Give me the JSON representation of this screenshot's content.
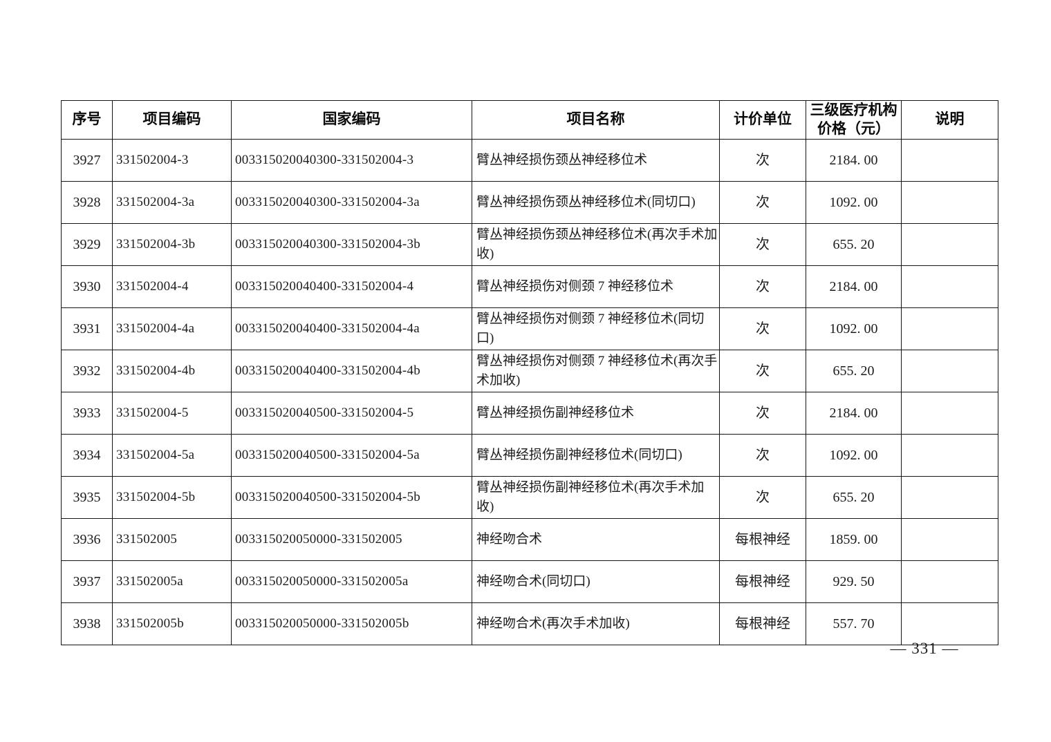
{
  "table": {
    "headers": {
      "seq": "序号",
      "item_code": "项目编码",
      "national_code": "国家编码",
      "item_name": "项目名称",
      "unit": "计价单位",
      "price_line1": "三级医疗机构",
      "price_line2": "价格（元）",
      "note": "说明"
    },
    "column_keys": [
      "seq",
      "item_code",
      "national_code",
      "item_name",
      "unit",
      "price",
      "note"
    ],
    "rows": [
      {
        "seq": "3927",
        "item_code": "331502004-3",
        "national_code": "003315020040300-331502004-3",
        "item_name": "臂丛神经损伤颈丛神经移位术",
        "unit": "次",
        "price": "2184. 00",
        "note": ""
      },
      {
        "seq": "3928",
        "item_code": "331502004-3a",
        "national_code": "003315020040300-331502004-3a",
        "item_name": "臂丛神经损伤颈丛神经移位术(同切口)",
        "unit": "次",
        "price": "1092. 00",
        "note": ""
      },
      {
        "seq": "3929",
        "item_code": "331502004-3b",
        "national_code": "003315020040300-331502004-3b",
        "item_name": "臂丛神经损伤颈丛神经移位术(再次手术加收)",
        "unit": "次",
        "price": "655. 20",
        "note": ""
      },
      {
        "seq": "3930",
        "item_code": "331502004-4",
        "national_code": "003315020040400-331502004-4",
        "item_name": "臂丛神经损伤对侧颈 7 神经移位术",
        "unit": "次",
        "price": "2184. 00",
        "note": ""
      },
      {
        "seq": "3931",
        "item_code": "331502004-4a",
        "national_code": "003315020040400-331502004-4a",
        "item_name": "臂丛神经损伤对侧颈 7 神经移位术(同切口)",
        "unit": "次",
        "price": "1092. 00",
        "note": ""
      },
      {
        "seq": "3932",
        "item_code": "331502004-4b",
        "national_code": "003315020040400-331502004-4b",
        "item_name": "臂丛神经损伤对侧颈 7 神经移位术(再次手术加收)",
        "unit": "次",
        "price": "655. 20",
        "note": ""
      },
      {
        "seq": "3933",
        "item_code": "331502004-5",
        "national_code": "003315020040500-331502004-5",
        "item_name": "臂丛神经损伤副神经移位术",
        "unit": "次",
        "price": "2184. 00",
        "note": ""
      },
      {
        "seq": "3934",
        "item_code": "331502004-5a",
        "national_code": "003315020040500-331502004-5a",
        "item_name": "臂丛神经损伤副神经移位术(同切口)",
        "unit": "次",
        "price": "1092. 00",
        "note": ""
      },
      {
        "seq": "3935",
        "item_code": "331502004-5b",
        "national_code": "003315020040500-331502004-5b",
        "item_name": "臂丛神经损伤副神经移位术(再次手术加收)",
        "unit": "次",
        "price": "655. 20",
        "note": ""
      },
      {
        "seq": "3936",
        "item_code": "331502005",
        "national_code": "003315020050000-331502005",
        "item_name": "神经吻合术",
        "unit": "每根神经",
        "price": "1859. 00",
        "note": ""
      },
      {
        "seq": "3937",
        "item_code": "331502005a",
        "national_code": "003315020050000-331502005a",
        "item_name": "神经吻合术(同切口)",
        "unit": "每根神经",
        "price": "929. 50",
        "note": ""
      },
      {
        "seq": "3938",
        "item_code": "331502005b",
        "national_code": "003315020050000-331502005b",
        "item_name": "神经吻合术(再次手术加收)",
        "unit": "每根神经",
        "price": "557. 70",
        "note": ""
      }
    ]
  },
  "footer": {
    "page_number": "— 331 —"
  }
}
